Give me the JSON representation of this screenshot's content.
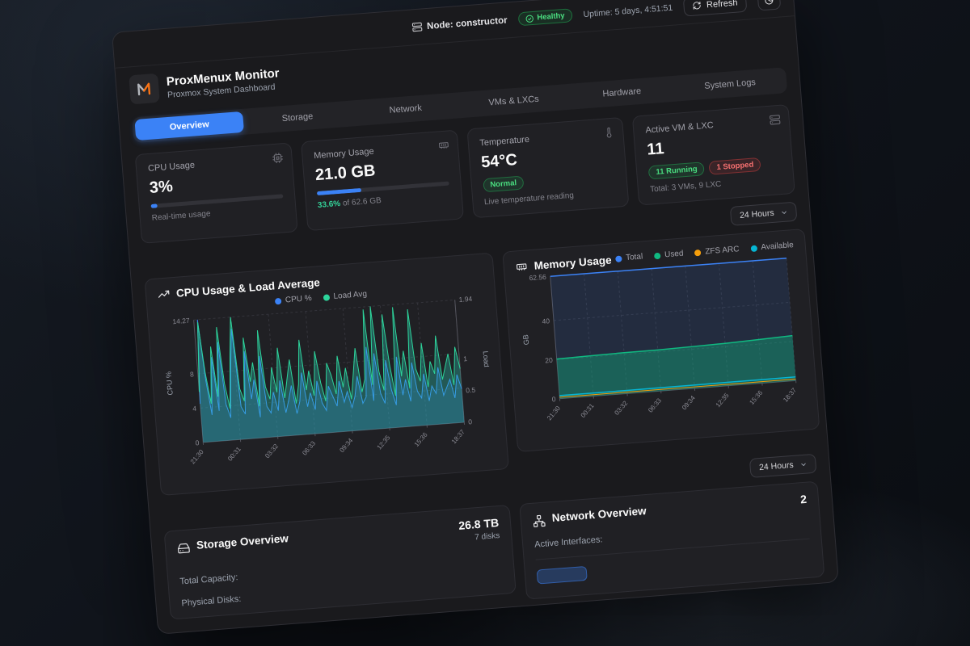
{
  "topbar": {
    "node": "Node: constructor",
    "health_badge": "Healthy",
    "uptime": "Uptime: 5 days, 4:51:51",
    "refresh_label": "Refresh"
  },
  "header": {
    "app_title": "ProxMenux Monitor",
    "app_subtitle": "Proxmox System Dashboard"
  },
  "tabs": {
    "items": [
      "Overview",
      "Storage",
      "Network",
      "VMs & LXCs",
      "Hardware",
      "System Logs"
    ],
    "active": "Overview"
  },
  "stats": {
    "cpu": {
      "label": "CPU Usage",
      "value": "3%",
      "percent": 3,
      "caption": "Real-time usage"
    },
    "memory": {
      "label": "Memory Usage",
      "value": "21.0 GB",
      "percent": 33.6,
      "caption_highlight": "33.6%",
      "caption_rest": " of 62.6 GB"
    },
    "temperature": {
      "label": "Temperature",
      "value": "54°C",
      "badge": "Normal",
      "caption": "Live temperature reading"
    },
    "vms": {
      "label": "Active VM & LXC",
      "value": "11",
      "running_badge": "11 Running",
      "stopped_badge": "1 Stopped",
      "caption": "Total: 3 VMs, 9 LXC"
    }
  },
  "time_range": {
    "label": "24 Hours"
  },
  "sections": {
    "cpu_chart_title": "CPU Usage & Load Average",
    "memory_chart_title": "Memory Usage",
    "storage": {
      "title": "Storage Overview",
      "capacity": "26.8 TB",
      "disks": "7 disks",
      "rows": [
        "Total Capacity:",
        "Physical Disks:"
      ]
    },
    "network": {
      "title": "Network Overview",
      "count": "2",
      "row_label": "Active Interfaces:"
    }
  },
  "colors": {
    "accent_blue": "#3b82f6",
    "green": "#10b981",
    "red": "#ef4444",
    "amber": "#f59e0b",
    "cyan": "#06b6d4",
    "logo_orange": "#f97316"
  },
  "chart_data": [
    {
      "type": "area",
      "title": "CPU Usage & Load Average",
      "x": [
        "21:30",
        "00:31",
        "03:32",
        "06:33",
        "09:34",
        "12:35",
        "15:36",
        "18:37"
      ],
      "left_axis": {
        "label": "CPU %",
        "max": 14.27,
        "ticks": [
          14.27,
          8,
          4,
          0
        ]
      },
      "right_axis": {
        "label": "Load",
        "max": 1.94,
        "ticks": [
          1.94,
          1,
          0.5,
          0
        ]
      },
      "grid": true,
      "legend_position": "top-center",
      "series": [
        {
          "name": "CPU %",
          "color": "#3b82f6",
          "axis": "left",
          "fill": "rgba(59,130,246,0.22)",
          "line_width": 1,
          "values": [
            4.5,
            14.27,
            7.2,
            3.1,
            9.8,
            3.5,
            11.5,
            4.2,
            2.6,
            8.4,
            12.9,
            3.8,
            2.9,
            10.2,
            4.6,
            6.8,
            2.4,
            9.5,
            3.6,
            2.8,
            5.2,
            3.0,
            6.5,
            2.7,
            4.1,
            5.8,
            2.5,
            3.9,
            7.2,
            3.2,
            4.8,
            2.8,
            6.1,
            3.5,
            2.6,
            5.4,
            4.2,
            3.0,
            5.9,
            3.4,
            4.6,
            2.7,
            4.0,
            6.3,
            3.1,
            3.8,
            9.6,
            3.3,
            8.8,
            4.1,
            2.9,
            7.9,
            4.4,
            2.6,
            8.2,
            3.7,
            5.5,
            2.9,
            7.4,
            4.0,
            3.2,
            6.0,
            2.8,
            4.5,
            3.6,
            6.6,
            3.3,
            4.2,
            5.1,
            2.9,
            5.6,
            3.9
          ]
        },
        {
          "name": "Load Avg",
          "color": "#2dd49b",
          "axis": "right",
          "fill": "rgba(45,212,191,0.32)",
          "line_width": 1,
          "values": [
            0.8,
            1.9,
            1.1,
            0.6,
            1.5,
            0.7,
            1.8,
            0.9,
            0.5,
            1.3,
            1.94,
            0.8,
            0.6,
            1.6,
            0.9,
            1.2,
            0.5,
            1.7,
            0.8,
            0.6,
            1.1,
            0.7,
            1.4,
            0.6,
            0.9,
            1.2,
            0.5,
            0.8,
            1.5,
            0.7,
            1.0,
            0.6,
            1.3,
            0.8,
            0.5,
            1.1,
            0.9,
            0.6,
            1.2,
            0.7,
            1.0,
            0.5,
            0.9,
            1.3,
            0.6,
            0.8,
            1.9,
            0.7,
            1.94,
            0.9,
            0.6,
            1.8,
            1.0,
            0.5,
            1.9,
            0.8,
            1.2,
            0.6,
            1.85,
            0.9,
            0.7,
            1.3,
            0.6,
            1.0,
            0.8,
            1.4,
            0.7,
            0.9,
            1.1,
            0.6,
            1.2,
            0.85
          ]
        }
      ]
    },
    {
      "type": "area",
      "title": "Memory Usage",
      "x": [
        "21:30",
        "00:31",
        "03:32",
        "06:33",
        "09:34",
        "12:35",
        "15:36",
        "18:37"
      ],
      "left_axis": {
        "label": "GB",
        "max": 62.56,
        "ticks": [
          62.56,
          40,
          20,
          0
        ]
      },
      "grid": true,
      "legend_position": "top-right",
      "series": [
        {
          "name": "Total",
          "color": "#3b82f6",
          "axis": "left",
          "fill": "rgba(59,130,246,0.13)",
          "line_width": 1.5,
          "values": [
            62.56,
            62.56,
            62.56,
            62.56,
            62.56,
            62.56,
            62.56,
            62.56
          ]
        },
        {
          "name": "Used",
          "color": "#10b981",
          "axis": "left",
          "fill": "rgba(16,185,129,0.38)",
          "line_width": 1.5,
          "values": [
            20.3,
            20.6,
            20.9,
            21.0,
            21.3,
            21.7,
            22.3,
            23.0
          ]
        },
        {
          "name": "ZFS ARC",
          "color": "#f59e0b",
          "axis": "left",
          "fill": null,
          "line_width": 1,
          "values": [
            0.8,
            0.8,
            0.8,
            0.8,
            0.8,
            0.8,
            0.8,
            0.8
          ]
        },
        {
          "name": "Available",
          "color": "#06b6d4",
          "axis": "left",
          "fill": null,
          "line_width": 1.5,
          "values": [
            1.6,
            1.6,
            1.6,
            1.7,
            1.7,
            1.8,
            1.8,
            1.9
          ]
        }
      ]
    }
  ]
}
